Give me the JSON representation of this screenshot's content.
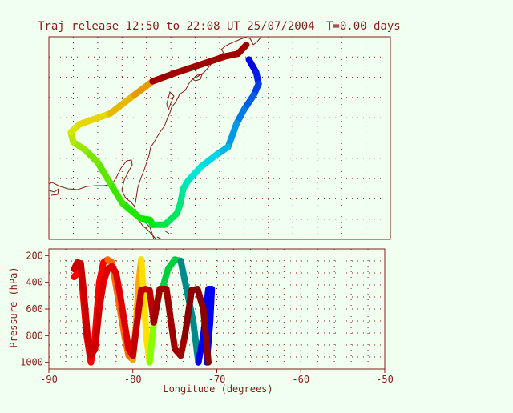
{
  "chart_data": [
    {
      "type": "map",
      "title": "Traj release 12:50 to 22:08 UT 25/07/2004",
      "time_label": "T=0.00 days",
      "grid": true,
      "trajectory": {
        "color_order": "red to violet along path",
        "lon": [
          -71.6,
          -71.0,
          -70.8,
          -71.2,
          -72.0,
          -72.6,
          -73.3,
          -74.2,
          -75.5,
          -76.6,
          -77.0,
          -77.2,
          -77.5,
          -78.5,
          -79.5,
          -79.7,
          -80.5,
          -82.0,
          -83.0,
          -84.0,
          -85.0,
          -86.0,
          -86.2,
          -85.5,
          -83.0,
          -81.0,
          -79.5,
          -77.5,
          -75.5,
          -73.5,
          -72.5,
          -71.8
        ],
        "lat": [
          42.2,
          40.6,
          39.2,
          37.8,
          36.0,
          34.3,
          31.4,
          30.5,
          29.0,
          27.2,
          26.2,
          24.5,
          23.2,
          21.8,
          21.8,
          22.4,
          22.6,
          24.5,
          27.0,
          29.5,
          31.0,
          32.0,
          33.2,
          34.2,
          35.5,
          37.8,
          39.5,
          40.6,
          41.6,
          42.6,
          42.9,
          44.0
        ]
      }
    },
    {
      "type": "line",
      "xlabel": "Longitude  (degrees)",
      "ylabel": "Pressure  (hPa)",
      "xlim": [
        -90,
        -50
      ],
      "ylim": [
        1050,
        150
      ],
      "x_ticks": [
        "-90",
        "-80",
        "-70",
        "-60",
        "-50"
      ],
      "y_ticks": [
        "200",
        "400",
        "600",
        "800",
        "1000"
      ],
      "x_tick_values": [
        -90,
        -80,
        -70,
        -60,
        -50
      ],
      "y_tick_values": [
        200,
        400,
        600,
        800,
        1000
      ],
      "series": [
        {
          "color": "#ff0000",
          "x": [
            -87.0,
            -86.2,
            -85.5,
            -85.0,
            -84.5,
            -84.0,
            -83.5,
            -83.0
          ],
          "y": [
            360,
            300,
            800,
            1000,
            800,
            400,
            250,
            230
          ]
        },
        {
          "color": "#ff6a00",
          "x": [
            -83.0,
            -82.5,
            -81.8,
            -81.0,
            -80.5,
            -80.0
          ],
          "y": [
            230,
            250,
            500,
            800,
            950,
            980
          ]
        },
        {
          "color": "#ffa500",
          "x": [
            -80.0,
            -79.6,
            -79.3,
            -79.0
          ],
          "y": [
            980,
            700,
            400,
            230
          ]
        },
        {
          "color": "#ffe000",
          "x": [
            -79.0,
            -78.8,
            -78.4,
            -78.0
          ],
          "y": [
            230,
            400,
            800,
            1000
          ]
        },
        {
          "color": "#88ff00",
          "x": [
            -78.0,
            -77.5,
            -77.0,
            -76.5
          ],
          "y": [
            1000,
            700,
            500,
            450
          ]
        },
        {
          "color": "#00d040",
          "x": [
            -76.5,
            -75.8,
            -75.0,
            -74.3
          ],
          "y": [
            450,
            300,
            230,
            240
          ]
        },
        {
          "color": "#008a8a",
          "x": [
            -74.3,
            -73.6,
            -72.8,
            -72.2
          ],
          "y": [
            240,
            450,
            700,
            1000
          ]
        },
        {
          "color": "#0000ee",
          "x": [
            -72.2,
            -71.6,
            -71.0,
            -70.6,
            -70.8,
            -71.2
          ],
          "y": [
            1000,
            800,
            450,
            450,
            700,
            1000
          ]
        },
        {
          "color": "#cc0000",
          "x": [
            -87.0,
            -86.6,
            -86.2,
            -85.8,
            -85.4,
            -85.0,
            -84.5,
            -84.0
          ],
          "y": [
            300,
            250,
            260,
            500,
            800,
            950,
            900,
            600
          ]
        },
        {
          "color": "#dd0000",
          "x": [
            -84.0,
            -83.5,
            -83.0,
            -82.5,
            -82.0,
            -81.5,
            -81.0,
            -80.5,
            -80.0
          ],
          "y": [
            600,
            400,
            300,
            280,
            330,
            500,
            700,
            900,
            950
          ]
        },
        {
          "color": "#c00000",
          "x": [
            -80.0,
            -79.5,
            -79.0,
            -78.5,
            -78.0,
            -77.5
          ],
          "y": [
            950,
            700,
            460,
            450,
            460,
            700
          ]
        },
        {
          "color": "#a00000",
          "x": [
            -77.5,
            -76.8,
            -76.0,
            -75.0,
            -74.3,
            -73.8
          ],
          "y": [
            700,
            450,
            450,
            900,
            950,
            800
          ]
        },
        {
          "color": "#8b0000",
          "x": [
            -73.8,
            -73.0,
            -72.3,
            -71.6,
            -71.0
          ],
          "y": [
            800,
            460,
            450,
            600,
            1000
          ]
        }
      ]
    }
  ]
}
